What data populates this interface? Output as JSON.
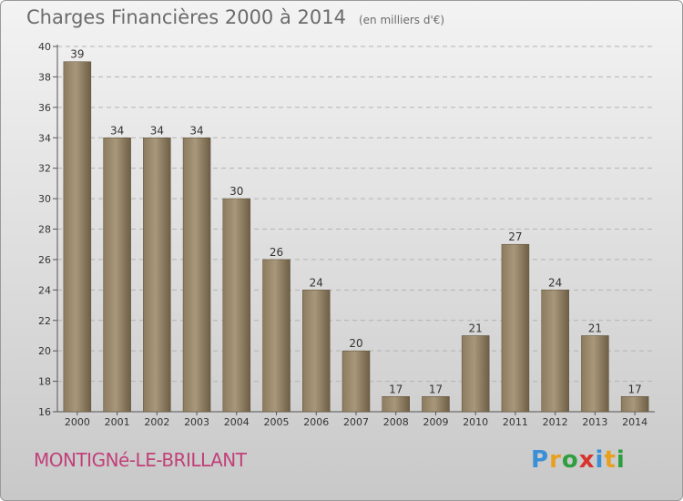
{
  "title": "Charges Financières 2000 à 2014",
  "unit": "(en milliers d'€)",
  "city": "MONTIGNé-LE-BRILLANT",
  "brand": {
    "letters": [
      "P",
      "r",
      "o",
      "x",
      "i",
      "t",
      "i"
    ],
    "colors": [
      "#3a8fd6",
      "#e8a020",
      "#2e9e3e",
      "#d9322e",
      "#3a8fd6",
      "#e8a020",
      "#2e9e3e"
    ]
  },
  "chart_data": {
    "type": "bar",
    "title": "Charges Financières 2000 à 2014",
    "categories": [
      "2000",
      "2001",
      "2002",
      "2003",
      "2004",
      "2005",
      "2006",
      "2007",
      "2008",
      "2009",
      "2010",
      "2011",
      "2012",
      "2013",
      "2014"
    ],
    "values": [
      39,
      34,
      34,
      34,
      30,
      26,
      24,
      20,
      17,
      17,
      21,
      27,
      24,
      21,
      17
    ],
    "ylim": [
      16,
      40
    ],
    "yticks": [
      16,
      18,
      20,
      22,
      24,
      26,
      28,
      30,
      32,
      34,
      36,
      38,
      40
    ],
    "grid": true,
    "colors": {
      "bar": "#7a6a50",
      "bar_light": "#a8977a",
      "grid": "#b4b4b4",
      "axis": "#555555"
    }
  }
}
